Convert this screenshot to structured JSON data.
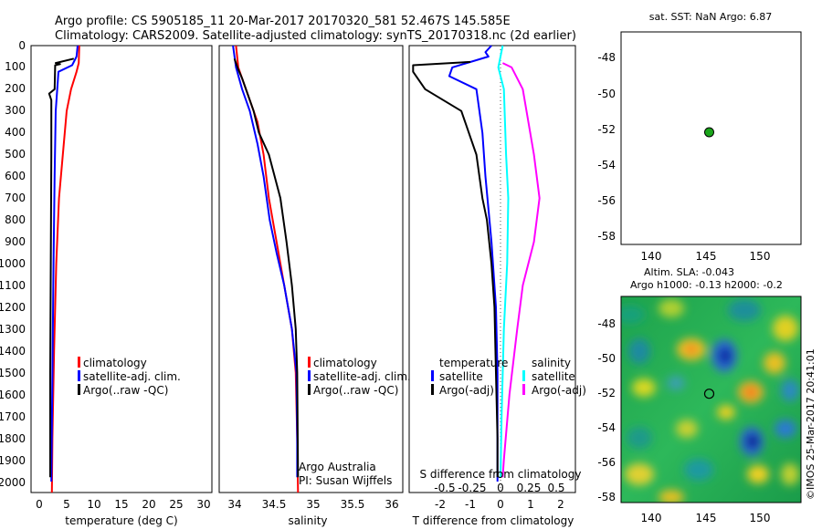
{
  "header": {
    "line1": "Argo profile: CS 5905185_11 20-Mar-2017 20170320_581 52.467S 145.585E",
    "line2": "Climatology: CARS2009. Satellite-adjusted climatology: synTS_20170318.nc (2d earlier)"
  },
  "colors": {
    "climatology": "#ff0000",
    "satellite": "#0000ff",
    "argo": "#000000",
    "sat_salinity": "#00ffff",
    "argo_salinity": "#ff00ff",
    "float_marker": "#1aa51a"
  },
  "chart_data": [
    {
      "type": "line",
      "xlabel": "temperature (deg C)",
      "xlim": [
        -1.5,
        31.5
      ],
      "xticks": [
        "0",
        "5",
        "10",
        "15",
        "20",
        "25",
        "30"
      ],
      "ylim": [
        0,
        2050
      ],
      "yticks": [
        "0",
        "100",
        "200",
        "300",
        "400",
        "500",
        "600",
        "700",
        "800",
        "900",
        "1000",
        "1100",
        "1200",
        "1300",
        "1400",
        "1500",
        "1600",
        "1700",
        "1800",
        "1900",
        "2000"
      ],
      "legend": {
        "entries": [
          "climatology",
          "satellite-adj. clim.",
          "Argo(..raw -QC)"
        ],
        "position": "lower-right"
      },
      "series": [
        {
          "name": "climatology",
          "color": "#ff0000",
          "points": [
            [
              7.3,
              0
            ],
            [
              7.2,
              80
            ],
            [
              6.8,
              120
            ],
            [
              5.8,
              200
            ],
            [
              5.0,
              300
            ],
            [
              4.3,
              500
            ],
            [
              3.6,
              700
            ],
            [
              3.1,
              1000
            ],
            [
              2.7,
              1400
            ],
            [
              2.4,
              1800
            ],
            [
              2.3,
              2050
            ]
          ]
        },
        {
          "name": "satellite-adj. clim.",
          "color": "#0000ff",
          "points": [
            [
              7.0,
              0
            ],
            [
              6.8,
              50
            ],
            [
              6.0,
              90
            ],
            [
              3.5,
              120
            ],
            [
              3.0,
              300
            ],
            [
              2.8,
              600
            ],
            [
              2.6,
              1000
            ],
            [
              2.4,
              1500
            ],
            [
              2.2,
              2000
            ]
          ]
        },
        {
          "name": "Argo(..raw -QC)",
          "color": "#000000",
          "points": [
            [
              6.3,
              60
            ],
            [
              3.0,
              80
            ],
            [
              3.8,
              85
            ],
            [
              2.9,
              90
            ],
            [
              2.8,
              200
            ],
            [
              1.8,
              220
            ],
            [
              2.2,
              250
            ],
            [
              2.2,
              500
            ],
            [
              2.1,
              1000
            ],
            [
              2.0,
              1500
            ],
            [
              2.0,
              1980
            ]
          ]
        }
      ]
    },
    {
      "type": "line",
      "xlabel": "salinity",
      "xlim": [
        33.7,
        36.1
      ],
      "xticks": [
        "34",
        "34.5",
        "35",
        "35.5",
        "36"
      ],
      "ylim": [
        0,
        2050
      ],
      "legend": {
        "entries": [
          "climatology",
          "satellite-adj. clim.",
          "Argo(..raw -QC)"
        ],
        "position": "lower-right"
      },
      "annotations": [
        "Argo Australia",
        "PI: Susan Wijffels"
      ],
      "series": [
        {
          "name": "climatology",
          "color": "#ff0000",
          "points": [
            [
              33.92,
              0
            ],
            [
              33.95,
              100
            ],
            [
              34.0,
              150
            ],
            [
              34.1,
              250
            ],
            [
              34.2,
              350
            ],
            [
              34.28,
              500
            ],
            [
              34.35,
              700
            ],
            [
              34.45,
              900
            ],
            [
              34.55,
              1100
            ],
            [
              34.65,
              1300
            ],
            [
              34.7,
              1500
            ],
            [
              34.72,
              1800
            ],
            [
              34.73,
              2050
            ]
          ]
        },
        {
          "name": "satellite-adj. clim.",
          "color": "#0000ff",
          "points": [
            [
              33.88,
              0
            ],
            [
              33.92,
              100
            ],
            [
              34.0,
              200
            ],
            [
              34.1,
              300
            ],
            [
              34.2,
              450
            ],
            [
              34.28,
              600
            ],
            [
              34.36,
              800
            ],
            [
              34.45,
              950
            ],
            [
              34.55,
              1100
            ],
            [
              34.65,
              1300
            ],
            [
              34.71,
              1500
            ],
            [
              34.72,
              1800
            ],
            [
              34.72,
              1980
            ]
          ]
        },
        {
          "name": "Argo(..raw -QC)",
          "color": "#000000",
          "points": [
            [
              33.9,
              60
            ],
            [
              33.95,
              110
            ],
            [
              34.0,
              150
            ],
            [
              34.05,
              200
            ],
            [
              34.15,
              300
            ],
            [
              34.22,
              400
            ],
            [
              34.35,
              500
            ],
            [
              34.5,
              700
            ],
            [
              34.58,
              900
            ],
            [
              34.65,
              1100
            ],
            [
              34.7,
              1300
            ],
            [
              34.72,
              1500
            ],
            [
              34.73,
              1980
            ]
          ]
        }
      ]
    },
    {
      "type": "line",
      "xlabel": "T difference from climatology",
      "xlabel_top": "S difference from climatology",
      "xlim": [
        -2.9,
        3.0
      ],
      "xticks": [
        "-2",
        "-1",
        "0",
        "1",
        "2"
      ],
      "xticks_top": [
        "-0.5",
        "-0.25",
        "0",
        "0.25",
        "0.5"
      ],
      "ylim": [
        0,
        2050
      ],
      "legend": {
        "headers": [
          "temperature",
          "salinity"
        ],
        "entries": [
          "satellite",
          "Argo(-adj)",
          "satellite",
          "Argo(-adj)"
        ],
        "position": "lower"
      },
      "series": [
        {
          "name": "temperature satellite",
          "color": "#0000ff",
          "points": [
            [
              -0.3,
              0
            ],
            [
              -0.5,
              30
            ],
            [
              -0.4,
              50
            ],
            [
              -1.6,
              100
            ],
            [
              -1.7,
              140
            ],
            [
              -0.8,
              200
            ],
            [
              -0.6,
              400
            ],
            [
              -0.5,
              600
            ],
            [
              -0.3,
              900
            ],
            [
              -0.15,
              1200
            ],
            [
              -0.1,
              1500
            ],
            [
              -0.1,
              2000
            ]
          ]
        },
        {
          "name": "temperature Argo(-adj)",
          "color": "#000000",
          "points": [
            [
              -1.0,
              75
            ],
            [
              -2.9,
              90
            ],
            [
              -2.9,
              120
            ],
            [
              -2.5,
              200
            ],
            [
              -1.3,
              300
            ],
            [
              -1.0,
              420
            ],
            [
              -0.8,
              500
            ],
            [
              -0.6,
              700
            ],
            [
              -0.45,
              800
            ],
            [
              -0.3,
              1000
            ],
            [
              -0.2,
              1200
            ],
            [
              -0.15,
              1500
            ],
            [
              -0.1,
              1800
            ],
            [
              -0.1,
              1980
            ]
          ]
        },
        {
          "name": "salinity satellite",
          "color": "#00ffff",
          "points": [
            [
              0.02,
              0
            ],
            [
              -0.02,
              100
            ],
            [
              0.03,
              200
            ],
            [
              0.05,
              500
            ],
            [
              0.07,
              700
            ],
            [
              0.06,
              1000
            ],
            [
              0.03,
              1300
            ],
            [
              0.01,
              1700
            ],
            [
              0.0,
              1980
            ]
          ]
        },
        {
          "name": "salinity Argo(-adj)",
          "color": "#ff00ff",
          "points": [
            [
              0.02,
              80
            ],
            [
              0.1,
              100
            ],
            [
              0.2,
              200
            ],
            [
              0.3,
              500
            ],
            [
              0.35,
              700
            ],
            [
              0.3,
              900
            ],
            [
              0.2,
              1100
            ],
            [
              0.15,
              1300
            ],
            [
              0.08,
              1600
            ],
            [
              0.03,
              1900
            ],
            [
              0.02,
              1980
            ]
          ]
        }
      ]
    },
    {
      "type": "scatter",
      "title": "sat. SST: NaN Argo: 6.87",
      "xlim": [
        137.5,
        154
      ],
      "ylim": [
        -58.8,
        -46.8
      ],
      "xticks": [
        "140",
        "145",
        "150"
      ],
      "yticks": [
        "-48",
        "-50",
        "-52",
        "-54",
        "-56",
        "-58"
      ],
      "points": [
        {
          "x": 145.585,
          "y": -52.467
        }
      ]
    },
    {
      "type": "heatmap",
      "title_line1": "Altim. SLA: -0.043",
      "title_line2": "Argo h1000: -0.13 h2000: -0.2",
      "xlim": [
        137.5,
        154
      ],
      "ylim": [
        -58.8,
        -46.8
      ],
      "xticks": [
        "140",
        "145",
        "150"
      ],
      "yticks": [
        "-48",
        "-50",
        "-52",
        "-54",
        "-56",
        "-58"
      ],
      "float_position": {
        "x": 145.585,
        "y": -52.467
      },
      "credit": "©IMOS 25-Mar-2017 20:41:01"
    }
  ]
}
